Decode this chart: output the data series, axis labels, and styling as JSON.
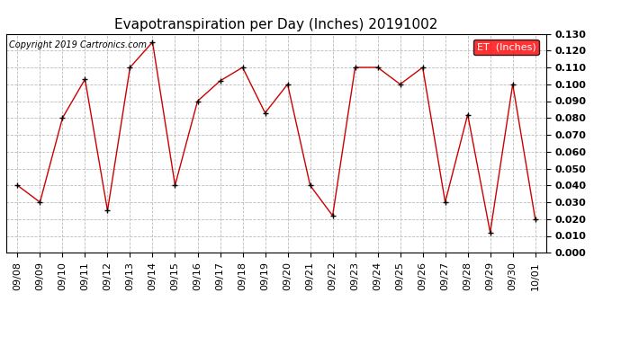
{
  "title": "Evapotranspiration per Day (Inches) 20191002",
  "copyright_text": "Copyright 2019 Cartronics.com",
  "legend_label": "ET  (Inches)",
  "legend_bg": "#ff0000",
  "legend_text_color": "#ffffff",
  "dates": [
    "09/08",
    "09/09",
    "09/10",
    "09/11",
    "09/12",
    "09/13",
    "09/14",
    "09/15",
    "09/16",
    "09/17",
    "09/18",
    "09/19",
    "09/20",
    "09/21",
    "09/22",
    "09/23",
    "09/24",
    "09/25",
    "09/26",
    "09/27",
    "09/28",
    "09/29",
    "09/30",
    "10/01"
  ],
  "values": [
    0.04,
    0.03,
    0.08,
    0.103,
    0.025,
    0.11,
    0.125,
    0.04,
    0.09,
    0.102,
    0.11,
    0.083,
    0.1,
    0.04,
    0.022,
    0.11,
    0.11,
    0.1,
    0.11,
    0.03,
    0.082,
    0.012,
    0.1,
    0.02
  ],
  "line_color": "#cc0000",
  "marker_color": "#000000",
  "ylim_min": 0.0,
  "ylim_max": 0.13,
  "background_color": "#ffffff",
  "grid_color": "#bbbbbb",
  "title_fontsize": 11,
  "tick_fontsize": 8,
  "copyright_fontsize": 7
}
